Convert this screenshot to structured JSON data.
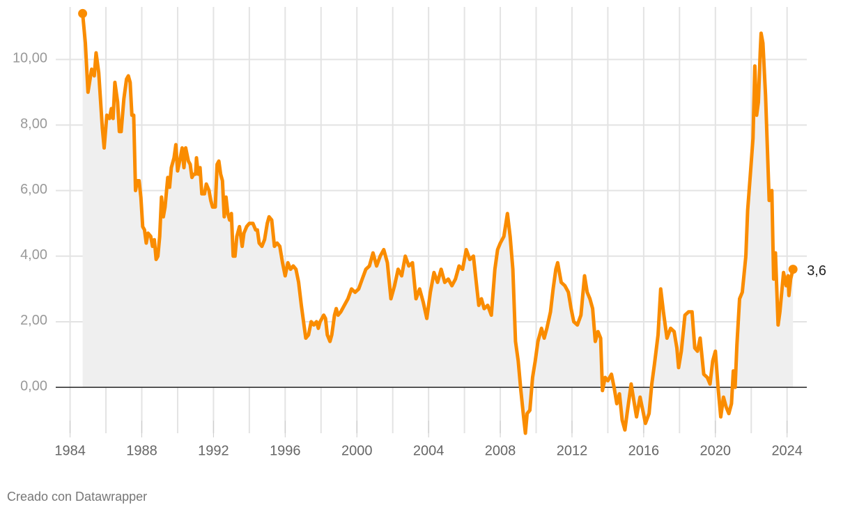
{
  "chart_data": {
    "type": "area-line",
    "source": "Creado con Datawrapper",
    "color": "#fa8c00",
    "area_color": "#efefef",
    "grid": true,
    "xlim": [
      1983.2,
      2025.1
    ],
    "ylim": [
      -1.4,
      11.6
    ],
    "xticks": [
      1984,
      1988,
      1992,
      1996,
      2000,
      2004,
      2008,
      2012,
      2016,
      2020,
      2024
    ],
    "minor_xticks": [
      1986,
      1990,
      1994,
      1998,
      2002,
      2006,
      2010,
      2014,
      2018,
      2022
    ],
    "yticks": [
      {
        "value": 0,
        "label": "0,00"
      },
      {
        "value": 2,
        "label": "2,00"
      },
      {
        "value": 4,
        "label": "4,00"
      },
      {
        "value": 6,
        "label": "6,00"
      },
      {
        "value": 8,
        "label": "8,00"
      },
      {
        "value": 10,
        "label": "10,00"
      }
    ],
    "x": [
      1984.7,
      1984.85,
      1985.0,
      1985.2,
      1985.35,
      1985.45,
      1985.6,
      1985.8,
      1985.9,
      1986.05,
      1986.2,
      1986.3,
      1986.4,
      1986.5,
      1986.65,
      1986.75,
      1986.85,
      1987.0,
      1987.15,
      1987.25,
      1987.35,
      1987.45,
      1987.55,
      1987.65,
      1987.75,
      1987.85,
      1987.95,
      1988.05,
      1988.15,
      1988.25,
      1988.35,
      1988.5,
      1988.6,
      1988.7,
      1988.8,
      1988.9,
      1989.0,
      1989.1,
      1989.2,
      1989.3,
      1989.45,
      1989.55,
      1989.65,
      1989.8,
      1989.9,
      1990.0,
      1990.15,
      1990.25,
      1990.35,
      1990.45,
      1990.6,
      1990.7,
      1990.8,
      1990.9,
      1991.0,
      1991.05,
      1991.15,
      1991.25,
      1991.35,
      1991.5,
      1991.6,
      1991.75,
      1991.85,
      1991.95,
      1992.1,
      1992.2,
      1992.3,
      1992.4,
      1992.5,
      1992.6,
      1992.7,
      1992.8,
      1992.9,
      1993.0,
      1993.1,
      1993.2,
      1993.3,
      1993.45,
      1993.6,
      1993.7,
      1993.85,
      1994.0,
      1994.2,
      1994.35,
      1994.45,
      1994.55,
      1994.7,
      1994.85,
      1995.0,
      1995.1,
      1995.25,
      1995.4,
      1995.55,
      1995.7,
      1995.85,
      1996.0,
      1996.15,
      1996.3,
      1996.45,
      1996.6,
      1996.75,
      1996.9,
      1997.05,
      1997.15,
      1997.3,
      1997.45,
      1997.6,
      1997.75,
      1997.85,
      1997.95,
      1998.15,
      1998.25,
      1998.35,
      1998.5,
      1998.6,
      1998.75,
      1998.85,
      1998.95,
      1999.1,
      1999.3,
      1999.5,
      1999.7,
      1999.9,
      2000.1,
      2000.3,
      2000.5,
      2000.7,
      2000.9,
      2001.1,
      2001.3,
      2001.5,
      2001.7,
      2001.9,
      2002.1,
      2002.3,
      2002.5,
      2002.7,
      2002.9,
      2003.1,
      2003.3,
      2003.5,
      2003.7,
      2003.9,
      2004.1,
      2004.3,
      2004.5,
      2004.7,
      2004.9,
      2005.1,
      2005.3,
      2005.5,
      2005.7,
      2005.9,
      2006.1,
      2006.3,
      2006.5,
      2006.7,
      2006.8,
      2006.95,
      2007.1,
      2007.3,
      2007.5,
      2007.7,
      2007.85,
      2008.0,
      2008.2,
      2008.4,
      2008.55,
      2008.7,
      2008.85,
      2009.0,
      2009.15,
      2009.3,
      2009.4,
      2009.5,
      2009.65,
      2009.8,
      2009.95,
      2010.1,
      2010.3,
      2010.45,
      2010.6,
      2010.8,
      2010.95,
      2011.1,
      2011.2,
      2011.4,
      2011.6,
      2011.8,
      2011.95,
      2012.1,
      2012.3,
      2012.5,
      2012.7,
      2012.85,
      2013.0,
      2013.15,
      2013.3,
      2013.45,
      2013.6,
      2013.7,
      2013.85,
      2014.0,
      2014.2,
      2014.35,
      2014.5,
      2014.65,
      2014.8,
      2014.95,
      2015.1,
      2015.3,
      2015.45,
      2015.6,
      2015.8,
      2015.95,
      2016.1,
      2016.3,
      2016.45,
      2016.6,
      2016.8,
      2016.95,
      2017.1,
      2017.3,
      2017.5,
      2017.7,
      2017.85,
      2017.95,
      2018.1,
      2018.3,
      2018.5,
      2018.7,
      2018.85,
      2019.0,
      2019.15,
      2019.35,
      2019.55,
      2019.7,
      2019.85,
      2020.0,
      2020.15,
      2020.3,
      2020.45,
      2020.6,
      2020.75,
      2020.9,
      2021.0,
      2021.1,
      2021.2,
      2021.35,
      2021.5,
      2021.7,
      2021.8,
      2021.95,
      2022.1,
      2022.2,
      2022.3,
      2022.4,
      2022.5,
      2022.55,
      2022.65,
      2022.8,
      2022.9,
      2023.0,
      2023.15,
      2023.25,
      2023.35,
      2023.5,
      2023.6,
      2023.8,
      2023.95,
      2024.05,
      2024.1,
      2024.2,
      2024.33
    ],
    "values": [
      11.4,
      10.5,
      9.0,
      9.7,
      9.5,
      10.2,
      9.6,
      7.9,
      7.3,
      8.3,
      8.2,
      8.5,
      8.2,
      9.3,
      8.7,
      7.8,
      7.8,
      8.8,
      9.4,
      9.5,
      9.3,
      8.3,
      8.3,
      6.0,
      6.3,
      6.3,
      5.8,
      4.9,
      4.8,
      4.4,
      4.7,
      4.6,
      4.3,
      4.5,
      3.9,
      4.0,
      4.6,
      5.8,
      5.2,
      5.5,
      6.4,
      6.1,
      6.7,
      7.0,
      7.4,
      6.6,
      7.0,
      7.3,
      6.7,
      7.3,
      6.9,
      6.8,
      6.4,
      6.5,
      6.5,
      7.0,
      6.5,
      6.7,
      5.9,
      5.9,
      6.2,
      6.0,
      5.7,
      5.5,
      5.5,
      6.8,
      6.9,
      6.5,
      6.3,
      5.2,
      5.8,
      5.3,
      5.1,
      5.3,
      4.0,
      4.0,
      4.6,
      4.9,
      4.3,
      4.7,
      4.9,
      5.0,
      5.0,
      4.8,
      4.8,
      4.4,
      4.3,
      4.5,
      5.0,
      5.2,
      5.1,
      4.3,
      4.4,
      4.3,
      3.8,
      3.4,
      3.8,
      3.6,
      3.7,
      3.6,
      3.2,
      2.5,
      1.9,
      1.5,
      1.6,
      2.0,
      1.9,
      2.0,
      1.8,
      2.0,
      2.2,
      2.1,
      1.6,
      1.4,
      1.6,
      2.2,
      2.4,
      2.2,
      2.3,
      2.5,
      2.7,
      3.0,
      2.9,
      3.0,
      3.3,
      3.6,
      3.7,
      4.1,
      3.7,
      4.0,
      4.2,
      3.8,
      2.7,
      3.1,
      3.6,
      3.4,
      4.0,
      3.7,
      3.8,
      2.7,
      3.0,
      2.6,
      2.1,
      2.9,
      3.5,
      3.2,
      3.6,
      3.2,
      3.3,
      3.1,
      3.3,
      3.7,
      3.6,
      4.2,
      3.9,
      4.0,
      3.0,
      2.5,
      2.7,
      2.4,
      2.5,
      2.2,
      3.6,
      4.2,
      4.4,
      4.6,
      5.3,
      4.6,
      3.6,
      1.4,
      0.8,
      -0.1,
      -0.9,
      -1.4,
      -0.8,
      -0.7,
      0.3,
      0.8,
      1.4,
      1.8,
      1.5,
      1.8,
      2.3,
      3.0,
      3.6,
      3.8,
      3.2,
      3.1,
      2.9,
      2.4,
      2.0,
      1.9,
      2.2,
      3.4,
      2.9,
      2.7,
      2.4,
      1.4,
      1.7,
      1.5,
      -0.1,
      0.3,
      0.2,
      0.4,
      0.0,
      -0.5,
      -0.2,
      -1.0,
      -1.3,
      -0.7,
      0.1,
      -0.4,
      -0.9,
      -0.3,
      -0.7,
      -1.1,
      -0.8,
      0.1,
      0.7,
      1.6,
      3.0,
      2.3,
      1.5,
      1.8,
      1.7,
      1.2,
      0.6,
      1.1,
      2.2,
      2.3,
      2.3,
      1.2,
      1.1,
      1.5,
      0.4,
      0.3,
      0.1,
      0.8,
      1.1,
      0.0,
      -0.9,
      -0.3,
      -0.6,
      -0.8,
      -0.5,
      0.5,
      0.0,
      1.3,
      2.7,
      2.9,
      4.0,
      5.4,
      6.5,
      7.6,
      9.8,
      8.3,
      8.7,
      10.2,
      10.8,
      10.5,
      8.9,
      7.3,
      5.7,
      6.0,
      3.3,
      4.1,
      1.9,
      2.3,
      3.5,
      3.1,
      3.4,
      2.8,
      3.3,
      3.6
    ],
    "end_value_label": "3,6"
  }
}
